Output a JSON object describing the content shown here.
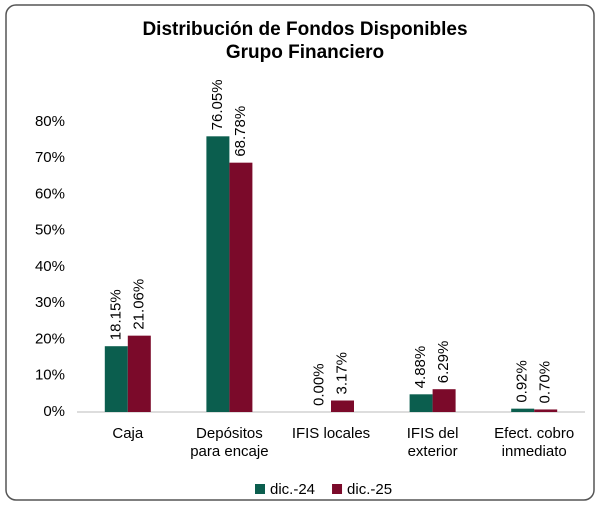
{
  "chart_data": {
    "type": "bar",
    "title": "Distribución de Fondos Disponibles",
    "subtitle": "Grupo Financiero",
    "categories": [
      [
        "Caja"
      ],
      [
        "Depósitos",
        "para encaje"
      ],
      [
        "IFIS locales"
      ],
      [
        "IFIS del",
        "exterior"
      ],
      [
        "Efect. cobro",
        "inmediato"
      ]
    ],
    "series": [
      {
        "name": "dic.-24",
        "color": "#0b5e4e",
        "values": [
          18.15,
          76.05,
          0.0,
          4.88,
          0.92
        ],
        "value_labels": [
          "18.15%",
          "76.05%",
          "0.00%",
          "4.88%",
          "0.92%"
        ]
      },
      {
        "name": "dic.-25",
        "color": "#7b0a2a",
        "values": [
          21.06,
          68.78,
          3.17,
          6.29,
          0.7
        ],
        "value_labels": [
          "21.06%",
          "68.78%",
          "3.17%",
          "6.29%",
          "0.70%"
        ]
      }
    ],
    "ylim": [
      0,
      80
    ],
    "yticks": [
      {
        "value": 0,
        "label": "0%"
      },
      {
        "value": 10,
        "label": "10%"
      },
      {
        "value": 20,
        "label": "20%"
      },
      {
        "value": 30,
        "label": "30%"
      },
      {
        "value": 40,
        "label": "40%"
      },
      {
        "value": 50,
        "label": "50%"
      },
      {
        "value": 60,
        "label": "60%"
      },
      {
        "value": 70,
        "label": "70%"
      },
      {
        "value": 80,
        "label": "80%"
      }
    ],
    "grid": false,
    "legend": "bottom"
  }
}
